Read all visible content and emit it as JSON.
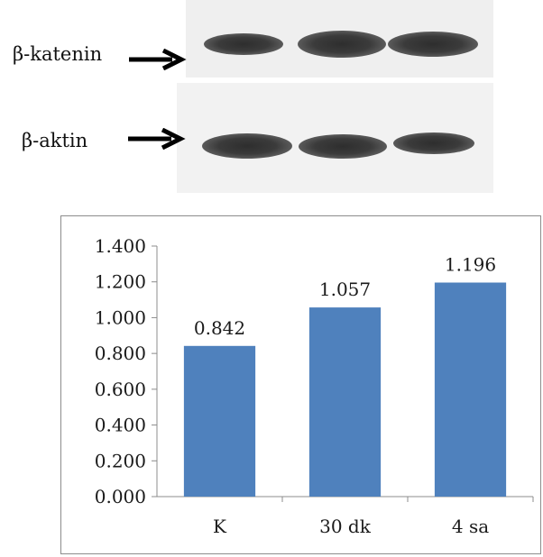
{
  "blot": {
    "rows": [
      {
        "label": "β-katenin",
        "intensity": [
          0.72,
          0.92,
          0.88
        ]
      },
      {
        "label": "β-aktin",
        "intensity": [
          0.9,
          0.88,
          0.75
        ]
      }
    ],
    "arrow_icon": "right-arrow-icon"
  },
  "chart_data": {
    "type": "bar",
    "title": "",
    "xlabel": "",
    "ylabel": "",
    "categories": [
      "K",
      "30 dk",
      "4 sa"
    ],
    "values": [
      0.842,
      1.057,
      1.196
    ],
    "data_labels": [
      "0.842",
      "1.057",
      "1.196"
    ],
    "ylim": [
      0,
      1.4
    ],
    "yticks": [
      "0.000",
      "0.200",
      "0.400",
      "0.600",
      "0.800",
      "1.000",
      "1.200",
      "1.400"
    ],
    "bar_color": "#4f81bd",
    "grid": false,
    "legend": "none"
  }
}
